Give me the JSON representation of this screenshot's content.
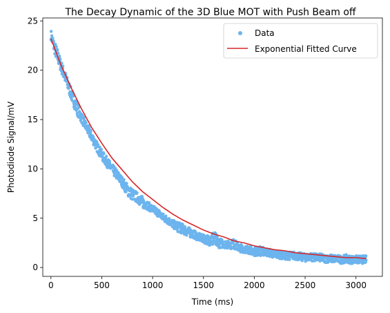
{
  "chart_data": {
    "type": "scatter",
    "title": "The Decay Dynamic of the 3D Blue MOT with Push Beam off",
    "xlabel": "Time (ms)",
    "ylabel": "Photodiode Signal/mV",
    "xlim": [
      -80,
      3260
    ],
    "ylim": [
      -0.9,
      25.3
    ],
    "xticks": [
      0,
      500,
      1000,
      1500,
      2000,
      2500,
      3000
    ],
    "yticks": [
      0,
      5,
      10,
      15,
      20,
      25
    ],
    "grid": false,
    "legend_position": "top-right",
    "series": [
      {
        "name": "Data",
        "kind": "scatter",
        "color": "#6cb4ee",
        "x": [
          0,
          25,
          50,
          100,
          150,
          200,
          250,
          300,
          350,
          400,
          450,
          500,
          550,
          600,
          650,
          700,
          750,
          800,
          850,
          900,
          950,
          1000,
          1050,
          1100,
          1150,
          1200,
          1250,
          1300,
          1350,
          1400,
          1450,
          1500,
          1550,
          1600,
          1650,
          1700,
          1750,
          1800,
          1850,
          1900,
          1950,
          2000,
          2050,
          2100,
          2150,
          2200,
          2250,
          2300,
          2350,
          2400,
          2450,
          2500,
          2550,
          2600,
          2650,
          2700,
          2750,
          2800,
          2850,
          2900,
          2950,
          3000,
          3050,
          3100
        ],
        "y": [
          23.6,
          22.6,
          21.9,
          20.4,
          19.0,
          17.6,
          16.3,
          15.2,
          14.2,
          13.3,
          12.3,
          11.4,
          10.7,
          10.0,
          9.4,
          8.7,
          7.9,
          7.4,
          7.1,
          6.6,
          6.3,
          5.9,
          5.6,
          5.1,
          4.8,
          4.4,
          4.1,
          3.9,
          3.6,
          3.4,
          3.1,
          2.9,
          2.8,
          2.9,
          2.5,
          2.4,
          2.3,
          2.4,
          2.0,
          1.9,
          1.8,
          1.6,
          1.7,
          1.6,
          1.5,
          1.3,
          1.3,
          1.2,
          1.2,
          1.2,
          1.1,
          1.0,
          1.1,
          1.0,
          1.0,
          0.9,
          0.9,
          0.9,
          0.8,
          0.9,
          0.8,
          0.8,
          0.8,
          0.8
        ],
        "spread": [
          0.5,
          0.6,
          0.7,
          0.6,
          0.6,
          0.6,
          0.7,
          0.5,
          0.5,
          0.5,
          0.5,
          0.5,
          0.5,
          0.5,
          0.5,
          0.5,
          0.6,
          0.6,
          0.5,
          0.6,
          0.4,
          0.4,
          0.4,
          0.4,
          0.4,
          0.4,
          0.5,
          0.5,
          0.5,
          0.4,
          0.4,
          0.4,
          0.5,
          0.9,
          0.5,
          0.4,
          0.4,
          0.5,
          0.4,
          0.4,
          0.4,
          0.4,
          0.5,
          0.4,
          0.4,
          0.4,
          0.4,
          0.4,
          0.4,
          0.4,
          0.4,
          0.4,
          0.4,
          0.4,
          0.4,
          0.4,
          0.4,
          0.4,
          0.4,
          0.4,
          0.4,
          0.4,
          0.4,
          0.4
        ]
      },
      {
        "name": "Exponential Fitted Curve",
        "kind": "line",
        "color": "#d62728",
        "x": [
          0,
          100,
          200,
          300,
          400,
          500,
          600,
          700,
          800,
          900,
          1000,
          1100,
          1200,
          1300,
          1400,
          1500,
          1600,
          1700,
          1800,
          1900,
          2000,
          2100,
          2200,
          2300,
          2400,
          2500,
          2600,
          2700,
          2800,
          2900,
          3000,
          3100
        ],
        "y": [
          23.2,
          20.5,
          18.2,
          16.1,
          14.2,
          12.6,
          11.1,
          9.9,
          8.7,
          7.7,
          6.9,
          6.1,
          5.4,
          4.8,
          4.3,
          3.8,
          3.4,
          3.1,
          2.7,
          2.5,
          2.2,
          2.0,
          1.8,
          1.7,
          1.5,
          1.4,
          1.3,
          1.2,
          1.1,
          1.0,
          1.0,
          0.9
        ]
      }
    ]
  }
}
